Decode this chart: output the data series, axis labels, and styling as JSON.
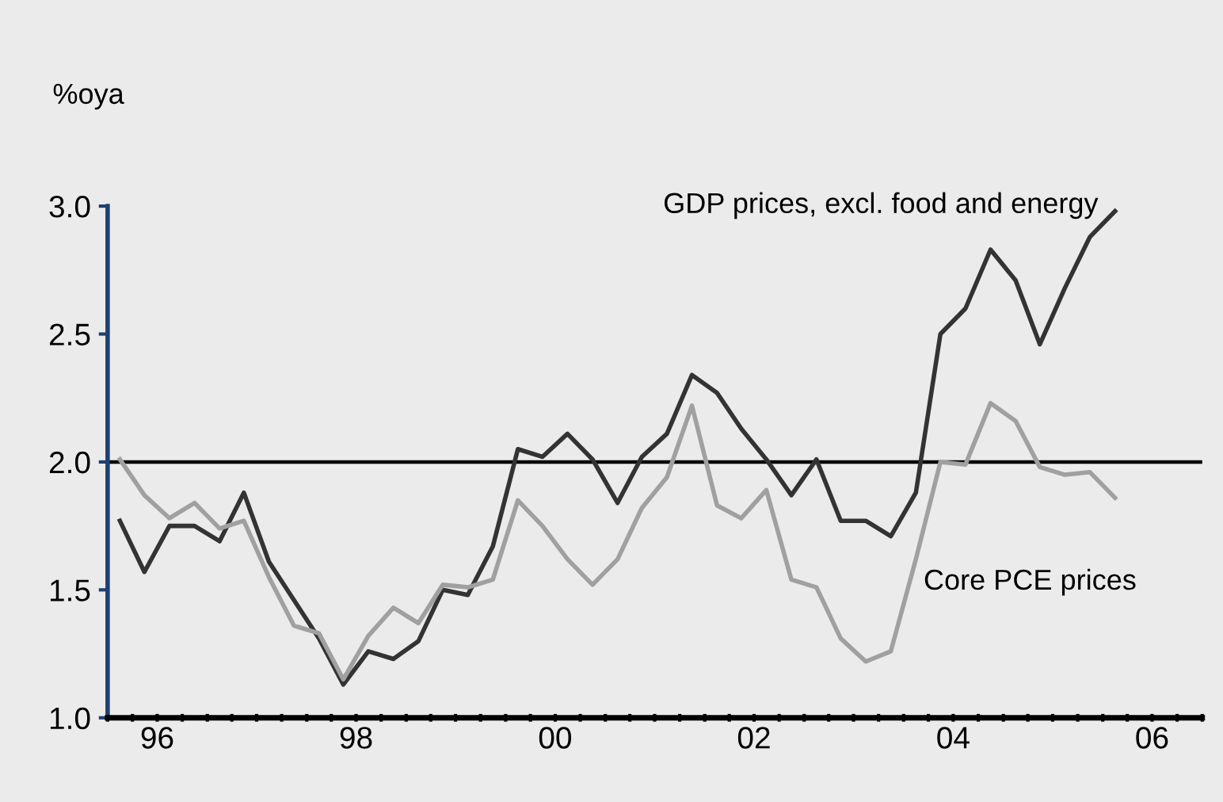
{
  "chart_data": {
    "type": "line",
    "ylabel": "%oya",
    "x": [
      "1996-02-15",
      "1996-05-15",
      "1996-08-15",
      "1996-11-15",
      "1997-02-15",
      "1997-05-15",
      "1997-08-15",
      "1997-11-15",
      "1998-02-15",
      "1998-05-15",
      "1998-08-15",
      "1998-11-15",
      "1999-02-15",
      "1999-05-15",
      "1999-08-15",
      "1999-11-15",
      "2000-02-15",
      "2000-05-15",
      "2000-08-15",
      "2000-11-15",
      "2001-02-15",
      "2001-05-15",
      "2001-08-15",
      "2001-11-15",
      "2002-02-15",
      "2002-05-15",
      "2002-08-15",
      "2002-11-15",
      "2003-02-15",
      "2003-05-15",
      "2003-08-15",
      "2003-11-15",
      "2004-02-15",
      "2004-05-15",
      "2004-08-15",
      "2004-11-15",
      "2005-02-15",
      "2005-05-15",
      "2005-08-15",
      "2005-11-15",
      "2006-02-15"
    ],
    "series": [
      {
        "name": "GDP prices, excl. food and energy",
        "color": "#333333",
        "values": [
          1.77,
          1.57,
          1.75,
          1.75,
          1.69,
          1.88,
          1.61,
          1.46,
          1.31,
          1.13,
          1.26,
          1.23,
          1.3,
          1.5,
          1.48,
          1.67,
          2.05,
          2.02,
          2.11,
          2.01,
          1.84,
          2.02,
          2.11,
          2.34,
          2.27,
          2.13,
          2.01,
          1.87,
          2.01,
          1.77,
          1.77,
          1.71,
          1.88,
          2.5,
          2.6,
          2.83,
          2.71,
          2.46,
          2.68,
          2.88,
          2.98
        ]
      },
      {
        "name": "Core PCE prices",
        "color": "#a0a0a0",
        "values": [
          2.01,
          1.87,
          1.78,
          1.84,
          1.74,
          1.77,
          1.55,
          1.36,
          1.33,
          1.15,
          1.32,
          1.43,
          1.37,
          1.52,
          1.51,
          1.54,
          1.85,
          1.75,
          1.62,
          1.52,
          1.62,
          1.82,
          1.94,
          2.22,
          1.83,
          1.78,
          1.89,
          1.54,
          1.51,
          1.31,
          1.22,
          1.26,
          1.62,
          2.0,
          1.99,
          2.23,
          2.16,
          1.98,
          1.95,
          1.96,
          1.86
        ]
      }
    ],
    "xlim": [
      "1996-01-01",
      "2007-01-01"
    ],
    "xticks": [
      {
        "value": "1996-01-01",
        "label": null
      },
      {
        "value": "1996-04-01",
        "label": null
      },
      {
        "value": "1996-07-01",
        "label": "96"
      },
      {
        "value": "1996-10-01",
        "label": null
      },
      {
        "value": "1997-01-01",
        "label": null
      },
      {
        "value": "1997-04-01",
        "label": null
      },
      {
        "value": "1997-07-01",
        "label": null
      },
      {
        "value": "1997-10-01",
        "label": null
      },
      {
        "value": "1998-01-01",
        "label": null
      },
      {
        "value": "1998-04-01",
        "label": null
      },
      {
        "value": "1998-07-01",
        "label": "98"
      },
      {
        "value": "1998-10-01",
        "label": null
      },
      {
        "value": "1999-01-01",
        "label": null
      },
      {
        "value": "1999-04-01",
        "label": null
      },
      {
        "value": "1999-07-01",
        "label": null
      },
      {
        "value": "1999-10-01",
        "label": null
      },
      {
        "value": "2000-01-01",
        "label": null
      },
      {
        "value": "2000-04-01",
        "label": null
      },
      {
        "value": "2000-07-01",
        "label": "00"
      },
      {
        "value": "2000-10-01",
        "label": null
      },
      {
        "value": "2001-01-01",
        "label": null
      },
      {
        "value": "2001-04-01",
        "label": null
      },
      {
        "value": "2001-07-01",
        "label": null
      },
      {
        "value": "2001-10-01",
        "label": null
      },
      {
        "value": "2002-01-01",
        "label": null
      },
      {
        "value": "2002-04-01",
        "label": null
      },
      {
        "value": "2002-07-01",
        "label": "02"
      },
      {
        "value": "2002-10-01",
        "label": null
      },
      {
        "value": "2003-01-01",
        "label": null
      },
      {
        "value": "2003-04-01",
        "label": null
      },
      {
        "value": "2003-07-01",
        "label": null
      },
      {
        "value": "2003-10-01",
        "label": null
      },
      {
        "value": "2004-01-01",
        "label": null
      },
      {
        "value": "2004-04-01",
        "label": null
      },
      {
        "value": "2004-07-01",
        "label": "04"
      },
      {
        "value": "2004-10-01",
        "label": null
      },
      {
        "value": "2005-01-01",
        "label": null
      },
      {
        "value": "2005-04-01",
        "label": null
      },
      {
        "value": "2005-07-01",
        "label": null
      },
      {
        "value": "2005-10-01",
        "label": null
      },
      {
        "value": "2006-01-01",
        "label": null
      },
      {
        "value": "2006-04-01",
        "label": null
      },
      {
        "value": "2006-07-01",
        "label": "06"
      },
      {
        "value": "2006-10-01",
        "label": null
      },
      {
        "value": "2007-01-01",
        "label": null
      }
    ],
    "ylim": [
      1.0,
      3.0
    ],
    "yticks": [
      {
        "value": 1.0,
        "label": "1.0"
      },
      {
        "value": 1.5,
        "label": "1.5"
      },
      {
        "value": 2.0,
        "label": "2.0"
      },
      {
        "value": 2.5,
        "label": "2.5"
      },
      {
        "value": 3.0,
        "label": "3.0"
      }
    ],
    "ref_lines": [
      {
        "axis": "y",
        "value": 2.0,
        "color": "#000000"
      }
    ],
    "grid": false,
    "legend": false,
    "marker": "none",
    "line_style": "solid"
  }
}
